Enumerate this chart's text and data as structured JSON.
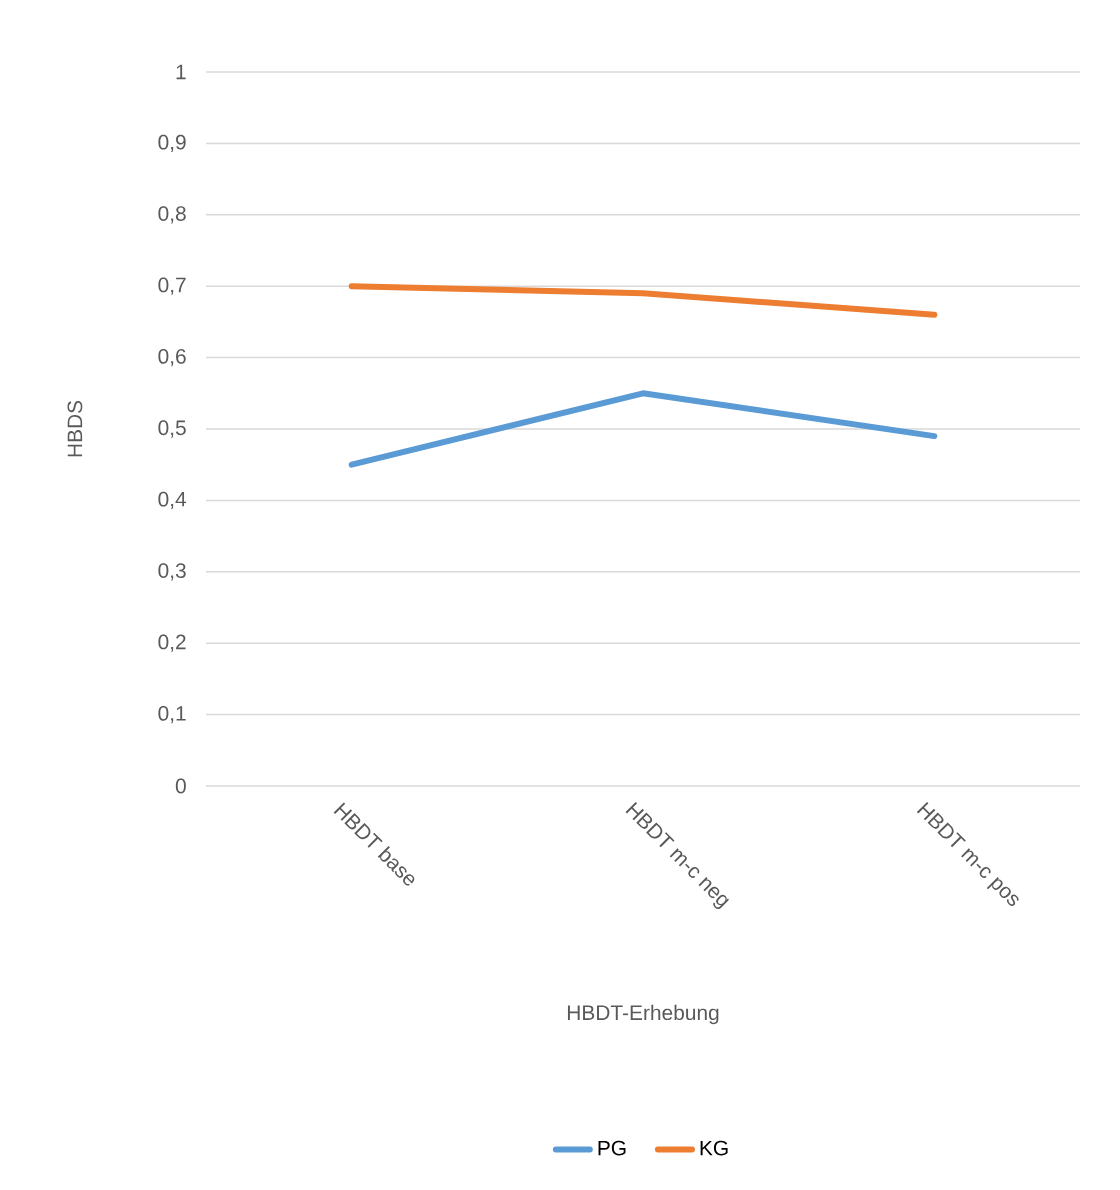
{
  "chart_data": {
    "type": "line",
    "xlabel": "HBDT-Erhebung",
    "ylabel": "HBDS",
    "categories": [
      "HBDT base",
      "HBDT m-c neg",
      "HBDT m-c pos"
    ],
    "series": [
      {
        "name": "PG",
        "color": "#5b9bd5",
        "values": [
          0.45,
          0.55,
          0.49
        ]
      },
      {
        "name": "KG",
        "color": "#ed7d31",
        "values": [
          0.7,
          0.69,
          0.66
        ]
      }
    ],
    "ylim": [
      0,
      1
    ],
    "yticks": [
      {
        "value": 0,
        "label": "0"
      },
      {
        "value": 0.1,
        "label": "0,1"
      },
      {
        "value": 0.2,
        "label": "0,2"
      },
      {
        "value": 0.3,
        "label": "0,3"
      },
      {
        "value": 0.4,
        "label": "0,4"
      },
      {
        "value": 0.5,
        "label": "0,5"
      },
      {
        "value": 0.6,
        "label": "0,6"
      },
      {
        "value": 0.7,
        "label": "0,7"
      },
      {
        "value": 0.8,
        "label": "0,8"
      },
      {
        "value": 0.9,
        "label": "0,9"
      },
      {
        "value": 1,
        "label": "1"
      }
    ],
    "grid": "y",
    "legend": "bottom"
  }
}
